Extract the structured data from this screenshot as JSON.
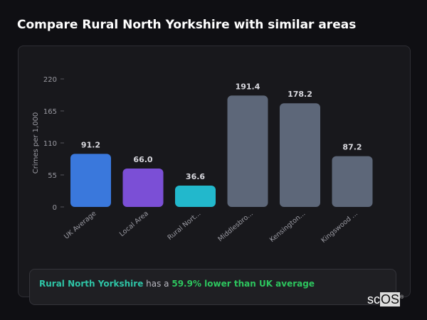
{
  "title": "Compare Rural North Yorkshire with similar areas",
  "chart_data": {
    "type": "bar",
    "ylabel": "Crimes per 1,000",
    "ylim": [
      0,
      220
    ],
    "yticks": [
      0,
      55,
      110,
      165,
      220
    ],
    "categories": [
      "UK Average",
      "Local Area",
      "Rural Nort...",
      "Middlesbro...",
      "Kensington...",
      "Kingswood ..."
    ],
    "values": [
      91.2,
      66.0,
      36.6,
      191.4,
      178.2,
      87.2
    ],
    "value_labels": [
      "91.2",
      "66.0",
      "36.6",
      "191.4",
      "178.2",
      "87.2"
    ],
    "colors": [
      "#3a78dc",
      "#7b4fd6",
      "#22b8cc",
      "#5d6779",
      "#5d6779",
      "#5d6779"
    ]
  },
  "footer": {
    "area": "Rural North Yorkshire",
    "middle": " has a ",
    "comparison": "59.9% lower than UK average"
  },
  "logo": {
    "text_a": "sc",
    "text_b": "OS",
    "mark": "®"
  }
}
